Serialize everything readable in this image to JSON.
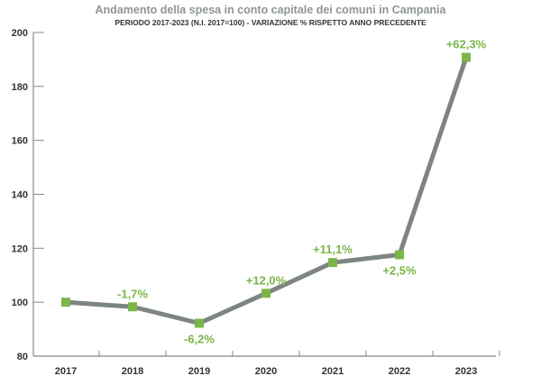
{
  "chart_data": {
    "type": "line",
    "title": "Andamento della spesa in conto capitale dei comuni in Campania",
    "subtitle": "PERIODO 2017-2023 (N.I. 2017=100) - VARIAZIONE % RISPETTO ANNO PRECEDENTE",
    "xlabel": "",
    "ylabel": "",
    "categories": [
      "2017",
      "2018",
      "2019",
      "2020",
      "2021",
      "2022",
      "2023"
    ],
    "values": [
      100,
      98.3,
      92.2,
      103.3,
      114.7,
      117.6,
      190.8
    ],
    "data_labels": [
      "",
      "-1,7%",
      "-6,2%",
      "+12,0%",
      "+11,1%",
      "+2,5%",
      "+62,3%"
    ],
    "label_positions": [
      "none",
      "above",
      "below",
      "above",
      "above",
      "below",
      "above"
    ],
    "ylim": [
      80,
      200
    ],
    "yticks": [
      "80",
      "100",
      "120",
      "140",
      "160",
      "180",
      "200"
    ],
    "grid": false,
    "colors": {
      "line": "#7d8484",
      "marker": "#7ab648",
      "label": "#7ab648"
    }
  }
}
